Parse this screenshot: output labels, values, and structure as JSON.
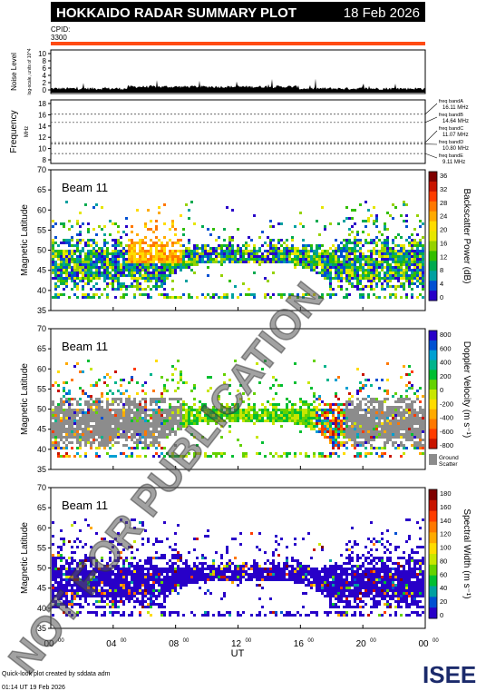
{
  "header": {
    "title": "HOKKAIDO RADAR SUMMARY PLOT",
    "date": "18 Feb 2026",
    "cpid_label": "CPID:",
    "cpid_value": "3300",
    "bar_color": "#ff4a12"
  },
  "noise_panel": {
    "ylabel": "Noise Level",
    "ylabel_sub": "log-scale, units of 10^4",
    "yticks": [
      "10",
      "8",
      "6",
      "4",
      "2",
      "0"
    ]
  },
  "freq_panel": {
    "ylabel": "Frequency",
    "ylabel_unit": "MHz",
    "yticks": [
      "18",
      "16",
      "14",
      "12",
      "10",
      "8"
    ],
    "bands": [
      {
        "label": "freq bandA",
        "freq": "16.11 MHz",
        "value": 16.11
      },
      {
        "label": "freq bandB",
        "freq": "14.64 MHz",
        "value": 14.64
      },
      {
        "label": "freq bandC",
        "freq": "11.07 MHz",
        "value": 11.07
      },
      {
        "label": "freq bandD",
        "freq": "10.80 MHz",
        "value": 10.8
      },
      {
        "label": "freq bandE",
        "freq": "9.11 MHz",
        "value": 9.11
      }
    ]
  },
  "beam_panels": [
    {
      "beam": "Beam 11",
      "ylabel": "Magnetic Latitude",
      "yticks": [
        "70",
        "65",
        "60",
        "55",
        "50",
        "45",
        "40",
        "35"
      ],
      "colorbar_label": "Backscatter Power (dB)",
      "colorbar_ticks": [
        "36",
        "32",
        "28",
        "24",
        "20",
        "16",
        "12",
        "8",
        "4",
        "0"
      ],
      "colors": [
        "#7f0000",
        "#c81400",
        "#ff3c00",
        "#ff7800",
        "#ffaa00",
        "#ffdc00",
        "#e6e600",
        "#96d200",
        "#32be00",
        "#00aa50",
        "#00a0a0",
        "#0050d2",
        "#2800c8"
      ]
    },
    {
      "beam": "Beam 11",
      "ylabel": "Magnetic Latitude",
      "yticks": [
        "70",
        "65",
        "60",
        "55",
        "50",
        "45",
        "40",
        "35"
      ],
      "colorbar_label": "Doppler Velocity (m s⁻¹)",
      "colorbar_ticks": [
        "800",
        "600",
        "400",
        "200",
        "0",
        "-200",
        "-400",
        "-600",
        "-800"
      ],
      "ground_scatter_label": [
        "Ground",
        "Scatter"
      ],
      "ground_color": "#8c8c8c",
      "colors": [
        "#2800c8",
        "#0050d2",
        "#00a0d2",
        "#00b48c",
        "#00be32",
        "#64d200",
        "#c8e600",
        "#ffdc00",
        "#ffaa00",
        "#ff7800",
        "#ff3c00",
        "#c81400"
      ]
    },
    {
      "beam": "Beam 11",
      "ylabel": "Magnetic Latitude",
      "yticks": [
        "70",
        "65",
        "60",
        "55",
        "50",
        "45",
        "40",
        "35"
      ],
      "colorbar_label": "Spectral Width (m s⁻¹)",
      "colorbar_ticks": [
        "180",
        "160",
        "140",
        "120",
        "100",
        "80",
        "60",
        "40",
        "20",
        "0"
      ],
      "colors": [
        "#7f0000",
        "#c81400",
        "#ff3c00",
        "#ff7800",
        "#ffaa00",
        "#ffdc00",
        "#c8e600",
        "#64d200",
        "#00be32",
        "#00a0a0",
        "#0050d2",
        "#2800c8"
      ]
    }
  ],
  "xaxis": {
    "label": "UT",
    "ticks": [
      "00",
      "04",
      "08",
      "12",
      "16",
      "20",
      "00"
    ],
    "tick_sup": "00"
  },
  "watermark": "NOT FOR PUBLICATION",
  "footer": {
    "line1": "Quick-look plot created by sddata adm",
    "line2": "01:14 UT 19 Feb 2026",
    "logo": "ISEE"
  },
  "chart_data": {
    "type": "heatmap",
    "title": "HOKKAIDO RADAR SUMMARY PLOT",
    "x_range_ut_hours": [
      0,
      24
    ],
    "xlabel": "UT",
    "panels": [
      {
        "name": "Noise Level",
        "ylim": [
          0,
          10
        ]
      },
      {
        "name": "Frequency",
        "ylim": [
          8,
          18
        ],
        "bands_mhz": [
          16.11,
          14.64,
          11.07,
          10.8,
          9.11
        ]
      },
      {
        "name": "Backscatter Power (dB)",
        "ylim": [
          35,
          70
        ],
        "zlim": [
          0,
          36
        ]
      },
      {
        "name": "Doppler Velocity (m s⁻¹)",
        "ylim": [
          35,
          70
        ],
        "zlim": [
          -800,
          800
        ]
      },
      {
        "name": "Spectral Width (m s⁻¹)",
        "ylim": [
          35,
          70
        ],
        "zlim": [
          0,
          180
        ]
      }
    ]
  }
}
